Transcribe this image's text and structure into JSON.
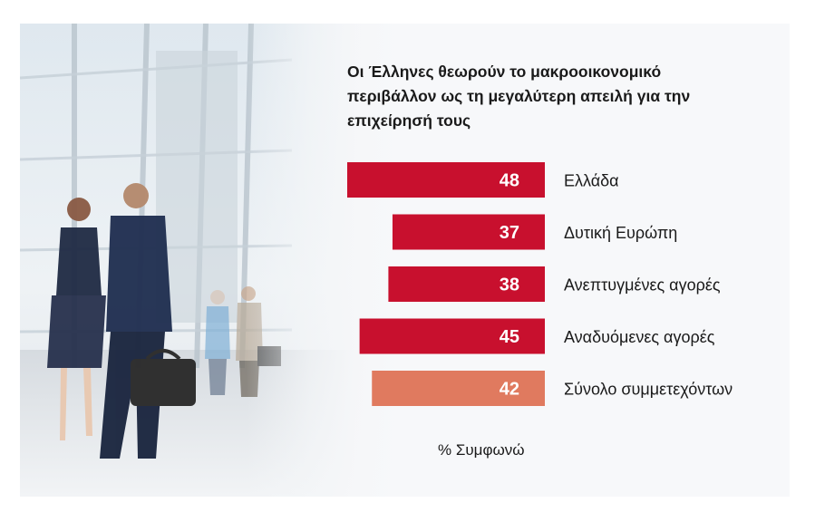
{
  "chart_data": {
    "type": "bar",
    "orientation": "horizontal",
    "title": "Οι Έλληνες θεωρούν το μακροοικονομικό περιβάλλον ως τη μεγαλύτερη απειλή για την επιχείρησή τους",
    "categories": [
      "Ελλάδα",
      "Δυτική Ευρώπη",
      "Ανεπτυγμένες αγορές",
      "Αναδυόμενες αγορές",
      "Σύνολο συμμετεχόντων"
    ],
    "values": [
      48,
      37,
      38,
      45,
      42
    ],
    "value_labels": [
      "48",
      "37",
      "38",
      "45",
      "42"
    ],
    "unit_note": "% Συμφωνώ",
    "xlim": [
      0,
      56
    ],
    "colors": {
      "bar": "#c8102e",
      "highlight_bar": "#e07a5f",
      "label_text": "#ffffff"
    },
    "highlight_index": 4,
    "grid": false,
    "legend": "none"
  }
}
